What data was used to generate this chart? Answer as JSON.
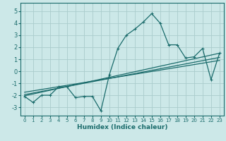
{
  "xlabel": "Humidex (Indice chaleur)",
  "ylabel": "",
  "bg_color": "#cce8e8",
  "grid_color": "#aacccc",
  "line_color": "#1a6b6b",
  "xlim": [
    -0.5,
    23.5
  ],
  "ylim": [
    -3.7,
    5.7
  ],
  "xticks": [
    0,
    1,
    2,
    3,
    4,
    5,
    6,
    7,
    8,
    9,
    10,
    11,
    12,
    13,
    14,
    15,
    16,
    17,
    18,
    19,
    20,
    21,
    22,
    23
  ],
  "yticks": [
    -3,
    -2,
    -1,
    0,
    1,
    2,
    3,
    4,
    5
  ],
  "main_x": [
    0,
    1,
    2,
    3,
    4,
    5,
    6,
    7,
    8,
    9,
    10,
    11,
    12,
    13,
    14,
    15,
    16,
    17,
    18,
    19,
    20,
    21,
    22,
    23
  ],
  "main_y": [
    -2.1,
    -2.6,
    -2.0,
    -2.0,
    -1.3,
    -1.3,
    -2.2,
    -2.1,
    -2.1,
    -3.3,
    -0.3,
    1.9,
    3.0,
    3.5,
    4.1,
    4.8,
    4.0,
    2.2,
    2.2,
    1.1,
    1.2,
    1.9,
    -0.7,
    1.5
  ],
  "trend1_x": [
    0,
    23
  ],
  "trend1_y": [
    -2.05,
    1.5
  ],
  "trend2_x": [
    0,
    23
  ],
  "trend2_y": [
    -1.95,
    1.15
  ],
  "trend3_x": [
    0,
    23
  ],
  "trend3_y": [
    -1.75,
    0.9
  ]
}
